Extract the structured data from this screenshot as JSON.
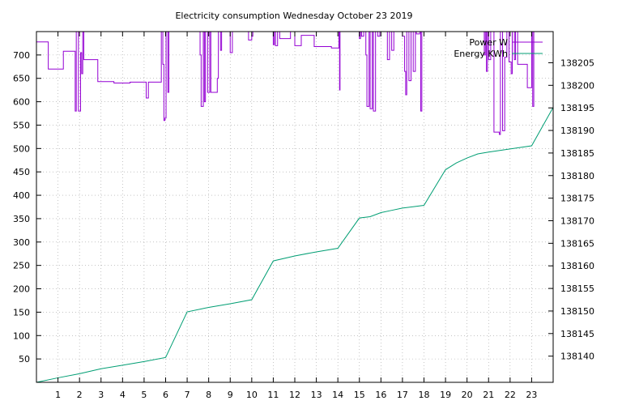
{
  "chart_data": {
    "type": "line",
    "title": "Electricity consumption Wednesday October 23 2019",
    "grid": true,
    "legend_position": "top-right",
    "x": {
      "range": [
        0,
        24
      ],
      "ticks": [
        1,
        2,
        3,
        4,
        5,
        6,
        7,
        8,
        9,
        10,
        11,
        12,
        13,
        14,
        15,
        16,
        17,
        18,
        19,
        20,
        21,
        22,
        23
      ]
    },
    "y_left": {
      "range": [
        0,
        750
      ],
      "ticks": [
        50,
        100,
        150,
        200,
        250,
        300,
        350,
        400,
        450,
        500,
        550,
        600,
        650,
        700
      ]
    },
    "y_right": {
      "range": [
        138134.2,
        138211.9
      ],
      "ticks": [
        138140,
        138145,
        138150,
        138155,
        138160,
        138165,
        138170,
        138175,
        138180,
        138185,
        138190,
        138195,
        138200,
        138205
      ]
    },
    "series": [
      {
        "name": "Power W",
        "axis": "left",
        "color": "#9400d3",
        "step": true,
        "points": [
          [
            0.0,
            728
          ],
          [
            0.55,
            670
          ],
          [
            1.25,
            708
          ],
          [
            1.8,
            580
          ],
          [
            1.85,
            750
          ],
          [
            1.95,
            580
          ],
          [
            2.05,
            705
          ],
          [
            2.1,
            660
          ],
          [
            2.15,
            750
          ],
          [
            2.2,
            690
          ],
          [
            2.85,
            643
          ],
          [
            3.6,
            640
          ],
          [
            4.35,
            642
          ],
          [
            5.1,
            608
          ],
          [
            5.2,
            642
          ],
          [
            5.8,
            750
          ],
          [
            5.87,
            680
          ],
          [
            5.92,
            560
          ],
          [
            5.97,
            565
          ],
          [
            6.02,
            750
          ],
          [
            6.1,
            620
          ],
          [
            6.15,
            750
          ],
          [
            7.6,
            700
          ],
          [
            7.65,
            590
          ],
          [
            7.75,
            750
          ],
          [
            7.8,
            600
          ],
          [
            7.85,
            750
          ],
          [
            7.95,
            620
          ],
          [
            8.05,
            750
          ],
          [
            8.1,
            620
          ],
          [
            8.4,
            650
          ],
          [
            8.45,
            750
          ],
          [
            8.55,
            710
          ],
          [
            8.6,
            750
          ],
          [
            9.0,
            705
          ],
          [
            9.1,
            750
          ],
          [
            9.85,
            732
          ],
          [
            10.0,
            740
          ],
          [
            10.05,
            750
          ],
          [
            11.0,
            722
          ],
          [
            11.05,
            750
          ],
          [
            11.1,
            720
          ],
          [
            11.2,
            750
          ],
          [
            11.3,
            735
          ],
          [
            11.8,
            750
          ],
          [
            12.0,
            720
          ],
          [
            12.3,
            742
          ],
          [
            12.9,
            718
          ],
          [
            13.7,
            715
          ],
          [
            14.05,
            750
          ],
          [
            14.08,
            625
          ],
          [
            14.1,
            750
          ],
          [
            15.0,
            735
          ],
          [
            15.05,
            750
          ],
          [
            15.1,
            740
          ],
          [
            15.2,
            750
          ],
          [
            15.3,
            700
          ],
          [
            15.35,
            590
          ],
          [
            15.45,
            750
          ],
          [
            15.5,
            585
          ],
          [
            15.6,
            750
          ],
          [
            15.65,
            580
          ],
          [
            15.75,
            750
          ],
          [
            15.85,
            740
          ],
          [
            15.95,
            750
          ],
          [
            16.3,
            690
          ],
          [
            16.4,
            750
          ],
          [
            16.5,
            710
          ],
          [
            16.6,
            750
          ],
          [
            17.0,
            740
          ],
          [
            17.1,
            665
          ],
          [
            17.15,
            615
          ],
          [
            17.2,
            750
          ],
          [
            17.3,
            645
          ],
          [
            17.4,
            750
          ],
          [
            17.5,
            665
          ],
          [
            17.6,
            750
          ],
          [
            17.65,
            745
          ],
          [
            17.8,
            750
          ],
          [
            17.85,
            580
          ],
          [
            17.9,
            750
          ],
          [
            20.8,
            700
          ],
          [
            20.85,
            750
          ],
          [
            20.9,
            665
          ],
          [
            20.95,
            750
          ],
          [
            21.0,
            690
          ],
          [
            21.1,
            750
          ],
          [
            21.25,
            535
          ],
          [
            21.5,
            530
          ],
          [
            21.55,
            750
          ],
          [
            21.65,
            538
          ],
          [
            21.75,
            695
          ],
          [
            21.85,
            750
          ],
          [
            21.95,
            685
          ],
          [
            22.05,
            660
          ],
          [
            22.1,
            750
          ],
          [
            22.2,
            690
          ],
          [
            22.25,
            750
          ],
          [
            22.35,
            680
          ],
          [
            22.8,
            630
          ],
          [
            23.0,
            750
          ],
          [
            23.05,
            590
          ],
          [
            23.1,
            750
          ]
        ]
      },
      {
        "name": "Energy KWh",
        "axis": "right",
        "color": "#009e73",
        "step": false,
        "points": [
          [
            0.0,
            138134.2
          ],
          [
            1.0,
            138135.2
          ],
          [
            2.0,
            138136.1
          ],
          [
            3.0,
            138137.2
          ],
          [
            4.0,
            138138.0
          ],
          [
            5.0,
            138138.8
          ],
          [
            6.0,
            138139.7
          ],
          [
            7.0,
            138149.8
          ],
          [
            8.0,
            138150.8
          ],
          [
            9.0,
            138151.6
          ],
          [
            10.0,
            138152.5
          ],
          [
            11.0,
            138161.1
          ],
          [
            12.0,
            138162.2
          ],
          [
            13.0,
            138163.1
          ],
          [
            14.0,
            138163.9
          ],
          [
            15.0,
            138170.6
          ],
          [
            15.5,
            138170.9
          ],
          [
            16.0,
            138171.8
          ],
          [
            16.5,
            138172.3
          ],
          [
            17.0,
            138172.8
          ],
          [
            18.0,
            138173.4
          ],
          [
            19.0,
            138181.3
          ],
          [
            19.5,
            138182.8
          ],
          [
            20.0,
            138183.9
          ],
          [
            20.5,
            138184.8
          ],
          [
            21.0,
            138185.2
          ],
          [
            22.0,
            138185.9
          ],
          [
            23.0,
            138186.6
          ],
          [
            24.0,
            138195.1
          ]
        ]
      }
    ]
  }
}
